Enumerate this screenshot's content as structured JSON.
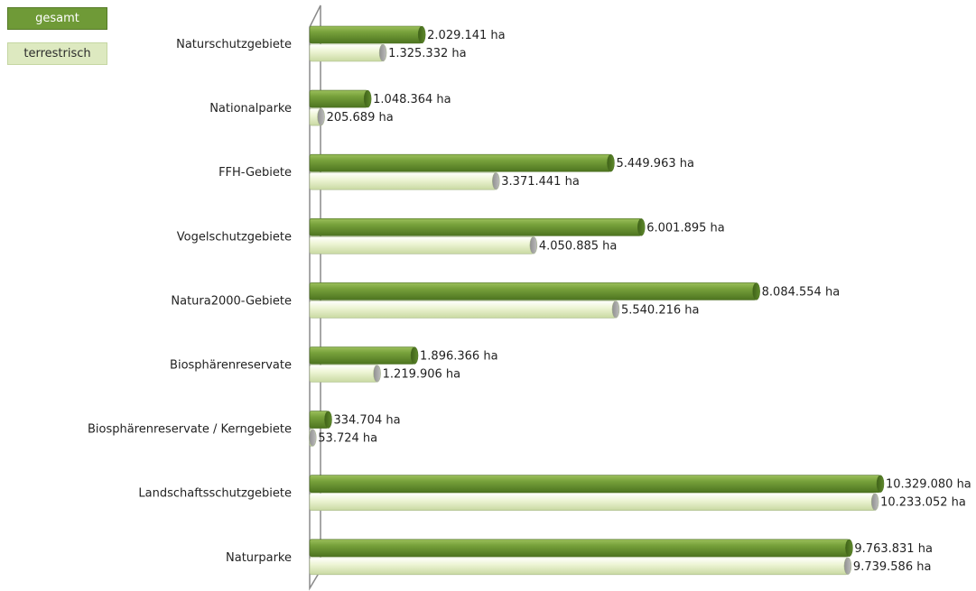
{
  "chart_data": {
    "type": "bar",
    "orientation": "horizontal",
    "unit": "ha",
    "categories": [
      "Naturschutzgebiete",
      "Nationalparke",
      "FFH-Gebiete",
      "Vogelschutzgebiete",
      "Natura2000-Gebiete",
      "Biosphärenreservate",
      "Biosphärenreservate / Kerngebiete",
      "Landschaftsschutzgebiete",
      "Naturparke"
    ],
    "series": [
      {
        "name": "gesamt",
        "color": "#6f9a37",
        "values": [
          2029141,
          1048364,
          5449963,
          6001895,
          8084554,
          1896366,
          334704,
          10329080,
          9763831
        ],
        "labels": [
          "2.029.141 ha",
          "1.048.364 ha",
          "5.449.963 ha",
          "6.001.895 ha",
          "8.084.554 ha",
          "1.896.366 ha",
          "334.704 ha",
          "10.329.080 ha",
          "9.763.831 ha"
        ]
      },
      {
        "name": "terrestrisch",
        "color": "#e8f2c9",
        "values": [
          1325332,
          205689,
          3371441,
          4050885,
          5540216,
          1219906,
          53724,
          10233052,
          9739586
        ],
        "labels": [
          "1.325.332 ha",
          "205.689 ha",
          "3.371.441 ha",
          "4.050.885 ha",
          "5.540.216 ha",
          "1.219.906 ha",
          "53.724 ha",
          "10.233.052 ha",
          "9.739.586 ha"
        ]
      }
    ],
    "grid": false,
    "legend": "top-left",
    "xlim": [
      0,
      10500000
    ]
  }
}
